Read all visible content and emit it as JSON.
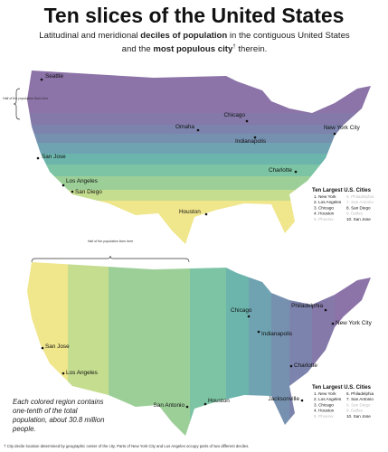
{
  "header": {
    "title": "Ten slices of the United States",
    "subtitle": [
      "Latitudinal and meridional ",
      "deciles of population",
      " in the contiguous United States and the ",
      "most populous city",
      "†",
      " therein."
    ]
  },
  "maps": [
    {
      "annotation": "Half of the population lives here",
      "cities": [
        "Seattle",
        "Chicago",
        "Omaha",
        "New York City",
        "Indianapolis",
        "San Jose",
        "Charlotte",
        "Los Angeles",
        "San Diego",
        "Houston"
      ],
      "legend": {
        "title": "Ten Largest U.S. Cities",
        "items": [
          {
            "text": "1. New York",
            "faded": false
          },
          {
            "text": "2. Los Angeles",
            "faded": false
          },
          {
            "text": "3. Chicago",
            "faded": false
          },
          {
            "text": "4. Houston",
            "faded": false
          },
          {
            "text": "5. Phoenix",
            "faded": true
          },
          {
            "text": "6. Philadelphia",
            "faded": true
          },
          {
            "text": "7. San Antonio",
            "faded": true
          },
          {
            "text": "8. San Diego",
            "faded": false
          },
          {
            "text": "9. Dallas",
            "faded": true
          },
          {
            "text": "10. San Jose",
            "faded": false
          }
        ]
      }
    },
    {
      "annotation": "Half of the population lives here",
      "cities": [
        "Chicago",
        "Philadelphia",
        "New York City",
        "Indianapolis",
        "San Jose",
        "Los Angeles",
        "Charlotte",
        "Houston",
        "San Antonio",
        "Jacksonville"
      ],
      "legend": {
        "title": "Ten Largest U.S. Cities",
        "items": [
          {
            "text": "1. New York",
            "faded": false
          },
          {
            "text": "2. Los Angeles",
            "faded": false
          },
          {
            "text": "3. Chicago",
            "faded": false
          },
          {
            "text": "4. Houston",
            "faded": false
          },
          {
            "text": "5. Phoenix",
            "faded": true
          },
          {
            "text": "6. Philadelphia",
            "faded": false
          },
          {
            "text": "7. San Antonio",
            "faded": false
          },
          {
            "text": "8. San Diego",
            "faded": true
          },
          {
            "text": "9. Dallas",
            "faded": true
          },
          {
            "text": "10. San Jose",
            "faded": false
          }
        ]
      }
    }
  ],
  "note": "Each colored region contains one-tenth of the total population, about 30.8 million people.",
  "footnote": "† City decile location determined by geographic center of the city. Parts of New York City and Los Angeles occupy parts of two different deciles."
}
